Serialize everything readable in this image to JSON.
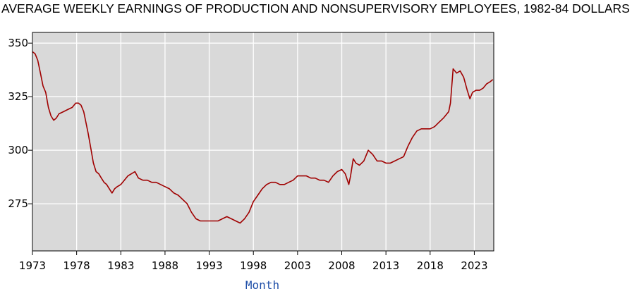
{
  "chart_data": {
    "type": "line",
    "title": "AVERAGE WEEKLY EARNINGS OF PRODUCTION AND NONSUPERVISORY EMPLOYEES, 1982-84 DOLLARS",
    "xlabel": "Month",
    "ylabel": "",
    "xlim": [
      1973,
      2025.2
    ],
    "ylim": [
      253,
      355
    ],
    "x_ticks": [
      1973,
      1978,
      1983,
      1988,
      1993,
      1998,
      2003,
      2008,
      2013,
      2018,
      2023
    ],
    "y_ticks": [
      275,
      300,
      325,
      350
    ],
    "grid": true,
    "colors": {
      "line": "#a00000",
      "plot_bg": "#d9d9d9",
      "grid": "#ffffff"
    },
    "series": [
      {
        "x": [
          1973.0,
          1973.3,
          1973.6,
          1973.9,
          1974.2,
          1974.5,
          1974.8,
          1975.1,
          1975.4,
          1975.7,
          1976.0,
          1976.5,
          1977.0,
          1977.5,
          1977.9,
          1978.2,
          1978.5,
          1978.8,
          1979.0,
          1979.3,
          1979.6,
          1979.9,
          1980.2,
          1980.5,
          1980.8,
          1981.1,
          1981.4,
          1981.7,
          1982.0,
          1982.3,
          1982.6,
          1983.0,
          1983.4,
          1983.8,
          1984.2,
          1984.6,
          1985.0,
          1985.5,
          1986.0,
          1986.5,
          1987.0,
          1987.5,
          1988.0,
          1988.5,
          1989.0,
          1989.5,
          1990.0,
          1990.5,
          1991.0,
          1991.5,
          1992.0,
          1992.5,
          1993.0,
          1993.5,
          1994.0,
          1994.5,
          1995.0,
          1995.5,
          1996.0,
          1996.5,
          1997.0,
          1997.5,
          1998.0,
          1998.5,
          1999.0,
          1999.5,
          2000.0,
          2000.5,
          2001.0,
          2001.5,
          2002.0,
          2002.5,
          2003.0,
          2003.5,
          2004.0,
          2004.5,
          2005.0,
          2005.5,
          2006.0,
          2006.5,
          2007.0,
          2007.5,
          2008.0,
          2008.4,
          2008.8,
          2009.0,
          2009.3,
          2009.6,
          2010.0,
          2010.5,
          2011.0,
          2011.5,
          2012.0,
          2012.5,
          2013.0,
          2013.5,
          2014.0,
          2014.5,
          2015.0,
          2015.5,
          2016.0,
          2016.5,
          2017.0,
          2017.5,
          2018.0,
          2018.5,
          2019.0,
          2019.5,
          2019.9,
          2020.1,
          2020.3,
          2020.6,
          2021.0,
          2021.4,
          2021.8,
          2022.2,
          2022.5,
          2022.8,
          2023.2,
          2023.6,
          2024.0,
          2024.4,
          2024.8,
          2025.1
        ],
        "values": [
          346,
          345,
          342,
          336,
          330,
          327,
          320,
          316,
          314,
          315,
          317,
          318,
          319,
          320,
          322,
          322,
          321,
          318,
          314,
          308,
          301,
          294,
          290,
          289,
          287,
          285,
          284,
          282,
          280,
          282,
          283,
          284,
          286,
          288,
          289,
          290,
          287,
          286,
          286,
          285,
          285,
          284,
          283,
          282,
          280,
          279,
          277,
          275,
          271,
          268,
          267,
          267,
          267,
          267,
          267,
          268,
          269,
          268,
          267,
          266,
          268,
          271,
          276,
          279,
          282,
          284,
          285,
          285,
          284,
          284,
          285,
          286,
          288,
          288,
          288,
          287,
          287,
          286,
          286,
          285,
          288,
          290,
          291,
          289,
          284,
          288,
          296,
          294,
          293,
          295,
          300,
          298,
          295,
          295,
          294,
          294,
          295,
          296,
          297,
          302,
          306,
          309,
          310,
          310,
          310,
          311,
          313,
          315,
          317,
          318,
          322,
          338,
          336,
          337,
          334,
          328,
          324,
          327,
          328,
          328,
          329,
          331,
          332,
          333
        ]
      }
    ]
  }
}
